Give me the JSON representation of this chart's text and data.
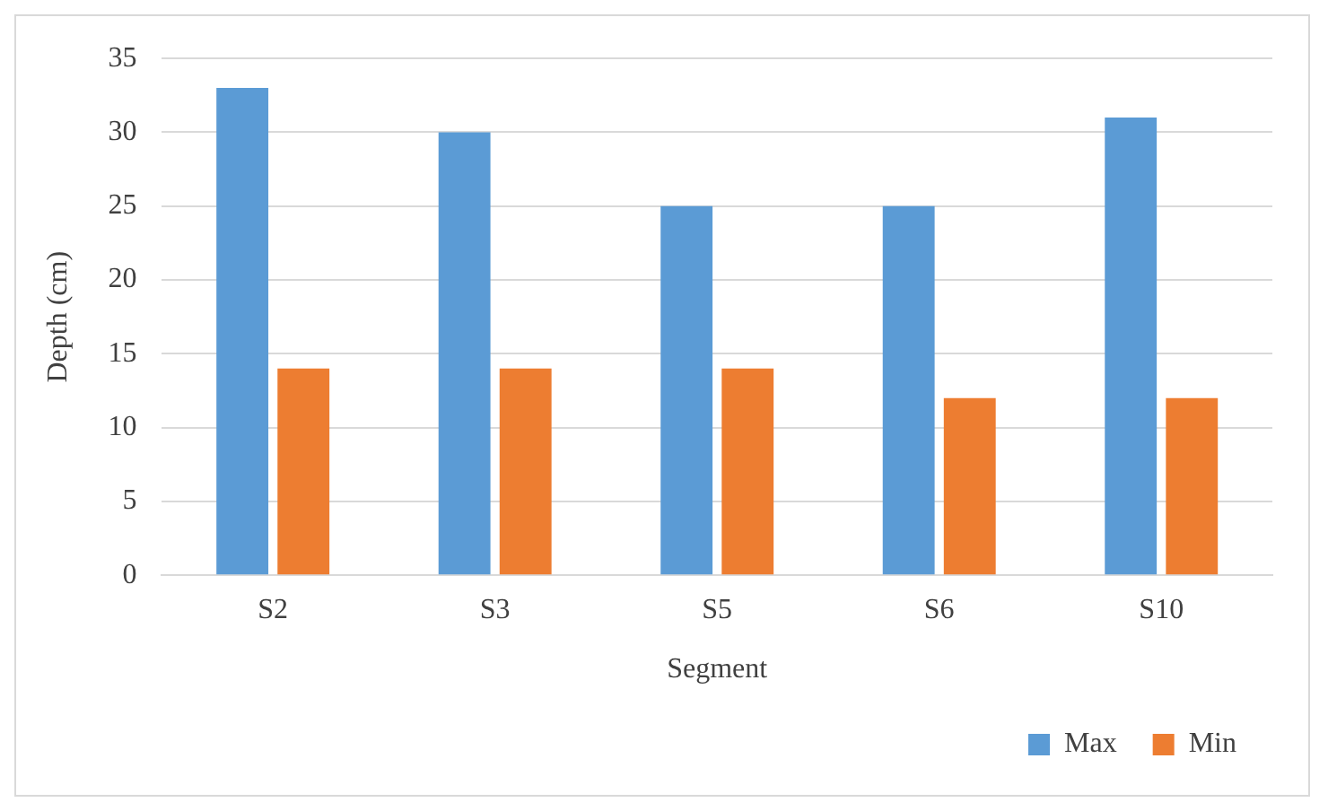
{
  "chart_data": {
    "type": "bar",
    "xlabel": "Segment",
    "ylabel": "Depth (cm)",
    "categories": [
      "S2",
      "S3",
      "S5",
      "S6",
      "S10"
    ],
    "series": [
      {
        "name": "Max",
        "color": "#5b9bd5",
        "values": [
          33,
          30,
          25,
          25,
          31
        ]
      },
      {
        "name": "Min",
        "color": "#ed7d31",
        "values": [
          14,
          14,
          14,
          12,
          12
        ]
      }
    ],
    "ylim": [
      0,
      35
    ],
    "yticks": [
      0,
      5,
      10,
      15,
      20,
      25,
      30,
      35
    ],
    "grid": "y",
    "legend": "bottom right"
  }
}
